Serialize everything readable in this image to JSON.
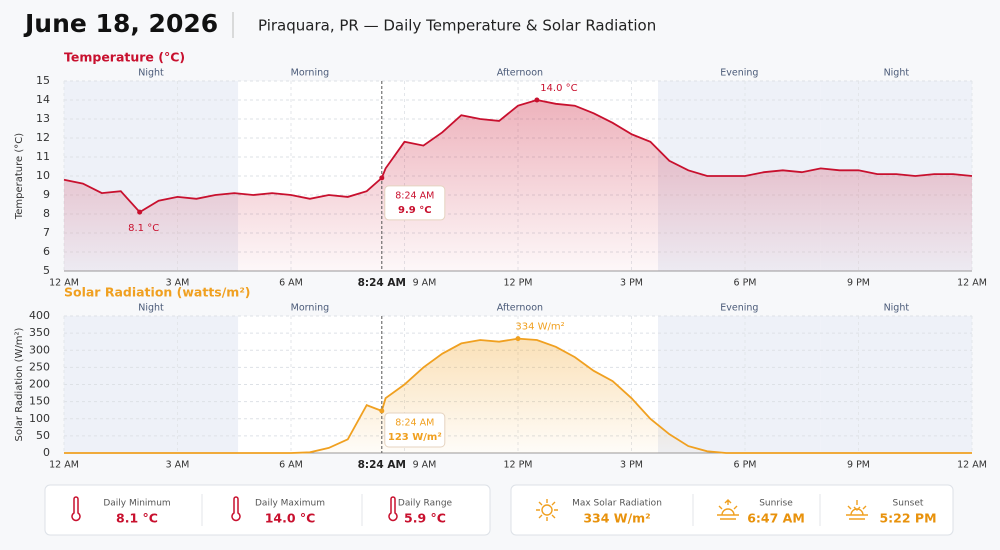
{
  "header": {
    "date": "June 18, 2026",
    "title": "Piraquara, PR — Daily Temperature & Solar Radiation"
  },
  "periods": [
    {
      "name": "Night",
      "start": 0,
      "end": 4.6,
      "shaded": true
    },
    {
      "name": "Morning",
      "start": 4.6,
      "end": 8.4,
      "shaded": false
    },
    {
      "name": "Afternoon",
      "start": 8.4,
      "end": 15.7,
      "shaded": false
    },
    {
      "name": "Evening",
      "start": 15.7,
      "end": 20,
      "shaded": true
    },
    {
      "name": "Night",
      "start": 20,
      "end": 24,
      "shaded": true
    }
  ],
  "chart_data": [
    {
      "type": "area",
      "title": "Temperature (°C)",
      "y_label": "Temperature (°C)",
      "color": "#c8102e",
      "x": [
        0,
        0.5,
        1,
        1.5,
        2,
        2.5,
        3,
        3.5,
        4,
        4.5,
        5,
        5.5,
        6,
        6.5,
        7,
        7.5,
        8,
        8.4,
        8.5,
        9,
        9.5,
        10,
        10.5,
        11,
        11.5,
        12,
        12.5,
        13,
        13.5,
        14,
        14.5,
        15,
        15.5,
        16,
        16.5,
        17,
        17.5,
        18,
        18.5,
        19,
        19.5,
        20,
        20.5,
        21,
        21.5,
        22,
        22.5,
        23,
        23.5,
        24
      ],
      "values": [
        9.8,
        9.6,
        9.1,
        9.2,
        8.1,
        8.7,
        8.9,
        8.8,
        9.0,
        9.1,
        9.0,
        9.1,
        9.0,
        8.8,
        9.0,
        8.9,
        9.2,
        9.9,
        10.4,
        11.8,
        11.6,
        12.3,
        13.2,
        13.0,
        12.9,
        13.7,
        14.0,
        13.8,
        13.7,
        13.3,
        12.8,
        12.2,
        11.8,
        10.8,
        10.3,
        10.0,
        10.0,
        10.0,
        10.2,
        10.3,
        10.2,
        10.4,
        10.3,
        10.3,
        10.1,
        10.1,
        10.0,
        10.1,
        10.1,
        10.0
      ],
      "xlim": [
        0,
        24
      ],
      "xticks": [
        {
          "value": 0,
          "label": "12 AM"
        },
        {
          "value": 3,
          "label": "3 AM"
        },
        {
          "value": 6,
          "label": "6 AM"
        },
        {
          "value": 9,
          "label": "9 AM"
        },
        {
          "value": 12,
          "label": "12 PM"
        },
        {
          "value": 15,
          "label": "3 PM"
        },
        {
          "value": 18,
          "label": "6 PM"
        },
        {
          "value": 21,
          "label": "9 PM"
        },
        {
          "value": 24,
          "label": "12 AM"
        }
      ],
      "ylim": [
        5,
        15
      ],
      "yticks": [
        5,
        6,
        7,
        8,
        9,
        10,
        11,
        12,
        13,
        14,
        15
      ],
      "grid": true,
      "cursor": {
        "value": 8.4,
        "label": "8:24 AM"
      },
      "annotations": [
        {
          "x": 8.4,
          "y": 9.9,
          "label": "9.9 °C"
        },
        {
          "x": 2,
          "y": 8.1,
          "label": "8.1 °C"
        },
        {
          "x": 12.5,
          "y": 14.0,
          "label": "14.0 °C"
        }
      ]
    },
    {
      "type": "area",
      "title": "Solar Radiation (watts/m²)",
      "y_label": "Solar Radiation (W/m²)",
      "color": "#f0a020",
      "x": [
        0,
        0.5,
        1,
        1.5,
        2,
        2.5,
        3,
        3.5,
        4,
        4.5,
        5,
        5.5,
        6,
        6.5,
        7,
        7.5,
        8,
        8.4,
        8.5,
        9,
        9.5,
        10,
        10.5,
        11,
        11.5,
        12,
        12.5,
        13,
        13.5,
        14,
        14.5,
        15,
        15.5,
        16,
        16.5,
        17,
        17.5,
        18,
        18.5,
        19,
        19.5,
        20,
        20.5,
        21,
        21.5,
        22,
        22.5,
        23,
        23.5,
        24
      ],
      "values": [
        0,
        0,
        0,
        0,
        0,
        0,
        0,
        0,
        0,
        0,
        0,
        0,
        0,
        2,
        15,
        40,
        140,
        123,
        160,
        200,
        250,
        290,
        320,
        330,
        325,
        334,
        330,
        310,
        280,
        240,
        210,
        160,
        100,
        55,
        20,
        5,
        0,
        0,
        0,
        0,
        0,
        0,
        0,
        0,
        0,
        0,
        0,
        0,
        0,
        0
      ],
      "xlim": [
        0,
        24
      ],
      "xticks": [
        {
          "value": 0,
          "label": "12 AM"
        },
        {
          "value": 3,
          "label": "3 AM"
        },
        {
          "value": 6,
          "label": "6 AM"
        },
        {
          "value": 9,
          "label": "9 AM"
        },
        {
          "value": 12,
          "label": "12 PM"
        },
        {
          "value": 15,
          "label": "3 PM"
        },
        {
          "value": 18,
          "label": "6 PM"
        },
        {
          "value": 21,
          "label": "9 PM"
        },
        {
          "value": 24,
          "label": "12 AM"
        }
      ],
      "ylim": [
        0,
        400
      ],
      "yticks": [
        0,
        50,
        100,
        150,
        200,
        250,
        300,
        350,
        400
      ],
      "grid": true,
      "cursor": {
        "value": 8.4,
        "label": "8:24 AM"
      },
      "annotations": [
        {
          "x": 8.4,
          "y": 123,
          "label": "123 W/m²"
        },
        {
          "x": 12,
          "y": 334,
          "label": "334 W/m²"
        }
      ]
    }
  ],
  "stats": {
    "temperature": [
      {
        "label": "Daily Minimum",
        "value": "8.1 °C"
      },
      {
        "label": "Daily Maximum",
        "value": "14.0 °C"
      },
      {
        "label": "Daily Range",
        "value": "5.9 °C"
      }
    ],
    "solar": [
      {
        "label": "Max Solar Radiation",
        "value": "334 W/m²"
      },
      {
        "label": "Sunrise",
        "value": "6:47 AM"
      },
      {
        "label": "Sunset",
        "value": "5:22 PM"
      }
    ]
  }
}
